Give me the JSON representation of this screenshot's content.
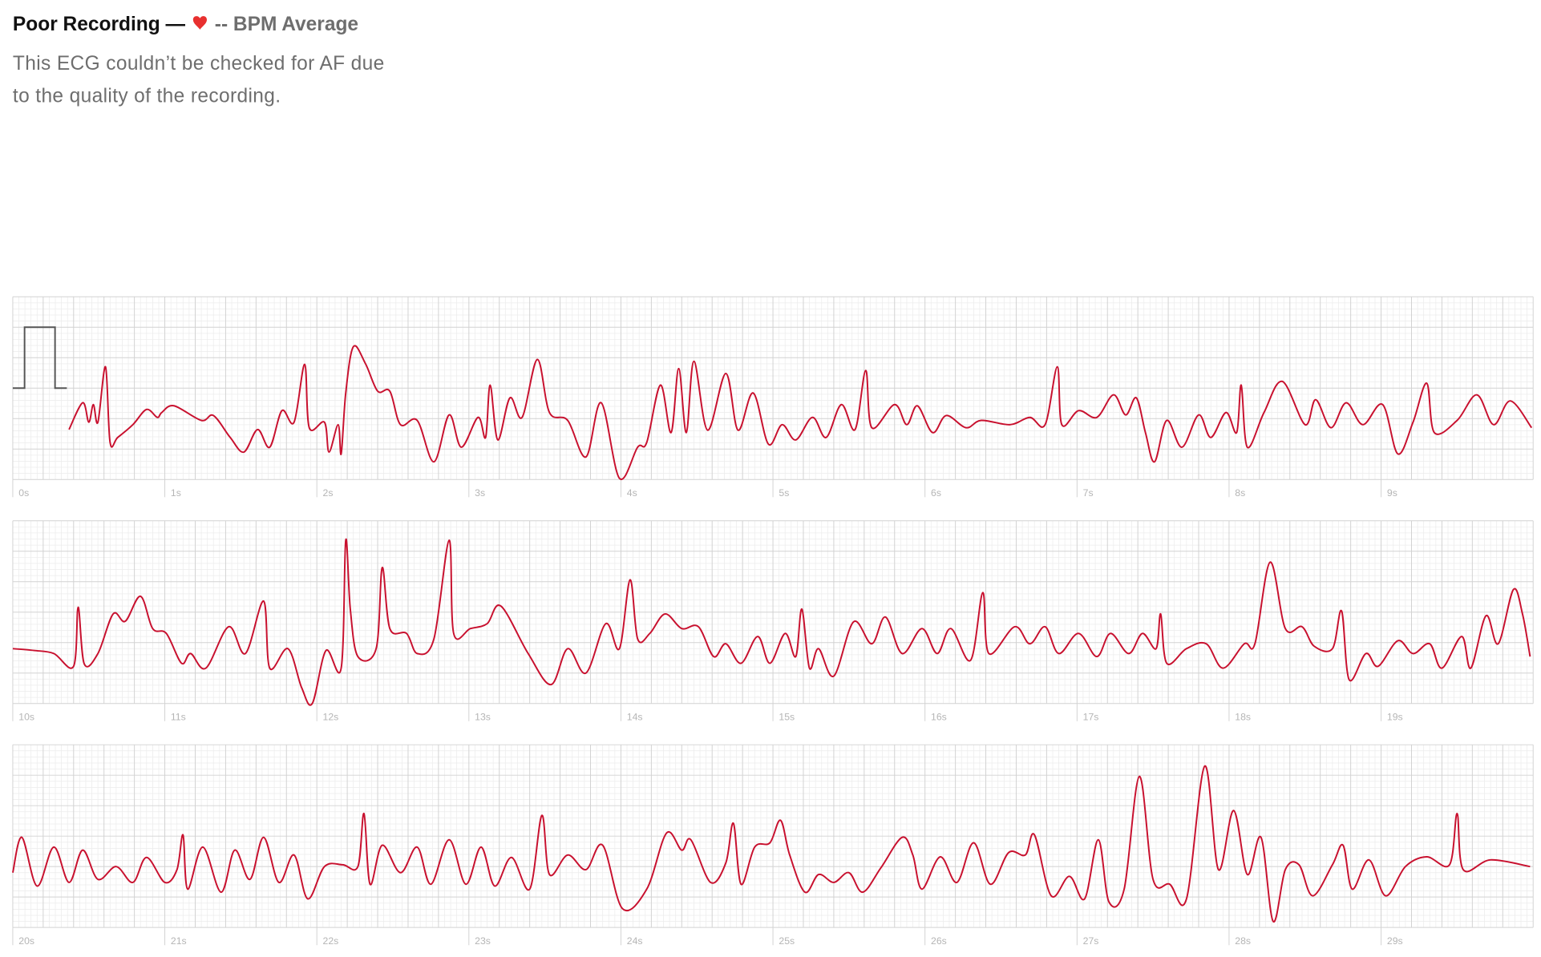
{
  "header": {
    "title": "Poor Recording —",
    "average": "-- BPM Average",
    "description": [
      "This ECG couldn’t be checked for AF due",
      "to the quality of the recording."
    ]
  },
  "chart_data": [
    {
      "type": "line",
      "xlim": [
        0,
        10
      ],
      "ylim": [
        -10,
        20
      ],
      "xticks": [
        {
          "value": 0,
          "label": "0s"
        },
        {
          "value": 1,
          "label": "1s"
        },
        {
          "value": 2,
          "label": "2s"
        },
        {
          "value": 3,
          "label": "3s"
        },
        {
          "value": 4,
          "label": "4s"
        },
        {
          "value": 5,
          "label": "5s"
        },
        {
          "value": 6,
          "label": "6s"
        },
        {
          "value": 7,
          "label": "7s"
        },
        {
          "value": 8,
          "label": "8s"
        },
        {
          "value": 9,
          "label": "9s"
        }
      ],
      "x": [
        0.37,
        0.46,
        0.5,
        0.53,
        0.56,
        0.61,
        0.64,
        0.69,
        0.79,
        0.88,
        0.95,
        0.98,
        1.06,
        1.24,
        1.32,
        1.43,
        1.52,
        1.61,
        1.69,
        1.77,
        1.85,
        1.92,
        1.95,
        2.05,
        2.08,
        2.14,
        2.16,
        2.19,
        2.24,
        2.32,
        2.4,
        2.48,
        2.55,
        2.66,
        2.77,
        2.87,
        2.95,
        3.06,
        3.11,
        3.14,
        3.19,
        3.27,
        3.35,
        3.45,
        3.53,
        3.65,
        3.77,
        3.87,
        3.99,
        4.11,
        4.17,
        4.26,
        4.33,
        4.38,
        4.43,
        4.48,
        4.57,
        4.69,
        4.77,
        4.87,
        4.97,
        5.06,
        5.15,
        5.26,
        5.35,
        5.45,
        5.54,
        5.61,
        5.65,
        5.8,
        5.88,
        5.95,
        6.05,
        6.14,
        6.27,
        6.37,
        6.56,
        6.69,
        6.79,
        6.87,
        6.9,
        7.01,
        7.13,
        7.24,
        7.32,
        7.39,
        7.45,
        7.51,
        7.59,
        7.69,
        7.8,
        7.88,
        7.98,
        8.05,
        8.08,
        8.12,
        8.23,
        8.35,
        8.5,
        8.57,
        8.67,
        8.77,
        8.88,
        9.01,
        9.11,
        9.21,
        9.3,
        9.35,
        9.5,
        9.63,
        9.74,
        9.85,
        9.99
      ],
      "series": [
        {
          "color": "#c8102e",
          "values": [
            -1.8,
            2.6,
            -0.6,
            2.3,
            -0.6,
            8.5,
            -3.9,
            -3.1,
            -1,
            1.5,
            0.2,
            1,
            2.1,
            -0.3,
            0.5,
            -3.1,
            -5.5,
            -1.8,
            -4.7,
            1.3,
            -0.6,
            8.9,
            -1.5,
            -0.6,
            -5.5,
            -1,
            -5.8,
            4.2,
            11.8,
            9,
            4.5,
            4.5,
            -1,
            -0.3,
            -7.1,
            0.6,
            -4.7,
            0.2,
            -3.1,
            5.5,
            -3.5,
            3.4,
            0.2,
            9.7,
            1,
            -0.3,
            -6.3,
            2.6,
            -9.8,
            -4.7,
            -3.9,
            5.5,
            -2.3,
            8.2,
            -2.3,
            9.4,
            -1.9,
            7.4,
            -1.9,
            4.2,
            -4.2,
            -1,
            -3.5,
            0.2,
            -3.1,
            2.3,
            -1.8,
            7.9,
            -1.5,
            2.3,
            -1,
            2.1,
            -2.3,
            0.5,
            -1.5,
            -0.3,
            -1,
            0.2,
            -1,
            8.5,
            -1,
            1.3,
            0.2,
            3.9,
            0.6,
            3.4,
            -2.3,
            -7.1,
            -0.3,
            -4.7,
            0.6,
            -3.1,
            1,
            -2.3,
            5.5,
            -4.7,
            1,
            6.1,
            -1,
            3.1,
            -1.5,
            2.6,
            -1,
            2.3,
            -5.8,
            -0.6,
            5.8,
            -2.3,
            -0.3,
            3.9,
            -1,
            2.9,
            -1.5
          ]
        }
      ]
    },
    {
      "type": "line",
      "xlim": [
        10,
        20
      ],
      "ylim": [
        -10,
        20
      ],
      "xticks": [
        {
          "value": 10,
          "label": "10s"
        },
        {
          "value": 11,
          "label": "11s"
        },
        {
          "value": 12,
          "label": "12s"
        },
        {
          "value": 13,
          "label": "13s"
        },
        {
          "value": 14,
          "label": "14s"
        },
        {
          "value": 15,
          "label": "15s"
        },
        {
          "value": 16,
          "label": "16s"
        },
        {
          "value": 17,
          "label": "17s"
        },
        {
          "value": 18,
          "label": "18s"
        },
        {
          "value": 19,
          "label": "19s"
        }
      ],
      "x": [
        10,
        10.14,
        10.27,
        10.4,
        10.43,
        10.47,
        10.56,
        10.66,
        10.74,
        10.84,
        10.92,
        11.01,
        11.11,
        11.17,
        11.27,
        11.42,
        11.53,
        11.65,
        11.69,
        11.81,
        11.9,
        11.97,
        12.06,
        12.16,
        12.19,
        12.22,
        12.27,
        12.39,
        12.43,
        12.48,
        12.59,
        12.66,
        12.77,
        12.87,
        12.9,
        13.01,
        13.12,
        13.21,
        13.39,
        13.54,
        13.65,
        13.77,
        13.9,
        13.99,
        14.06,
        14.11,
        14.19,
        14.29,
        14.4,
        14.51,
        14.61,
        14.69,
        14.79,
        14.9,
        14.98,
        15.08,
        15.15,
        15.19,
        15.24,
        15.3,
        15.4,
        15.53,
        15.65,
        15.74,
        15.85,
        15.98,
        16.08,
        16.17,
        16.3,
        16.38,
        16.42,
        16.59,
        16.69,
        16.79,
        16.88,
        17.01,
        17.13,
        17.22,
        17.34,
        17.43,
        17.52,
        17.55,
        17.59,
        17.72,
        17.85,
        17.96,
        18.1,
        18.17,
        18.27,
        18.37,
        18.48,
        18.56,
        18.68,
        18.74,
        18.79,
        18.9,
        18.98,
        19.11,
        19.21,
        19.32,
        19.4,
        19.53,
        19.59,
        19.69,
        19.77,
        19.87,
        19.93,
        19.98
      ],
      "series": [
        {
          "color": "#c8102e",
          "values": [
            -1,
            -1.3,
            -1.8,
            -3.9,
            5.8,
            -3.5,
            -1.8,
            4.7,
            3.5,
            7.6,
            2.3,
            1.5,
            -3.4,
            -1.8,
            -4.2,
            2.6,
            -1.8,
            6.8,
            -4.2,
            -1,
            -7.4,
            -10,
            -1.3,
            -4.2,
            16.8,
            5.5,
            -2.3,
            -1,
            12.3,
            2.3,
            1.5,
            -1.8,
            0.6,
            16.8,
            1.5,
            2.3,
            3.1,
            6,
            -1.8,
            -6.9,
            -1,
            -5,
            3.1,
            -1,
            10.3,
            0.6,
            1.5,
            4.7,
            2.3,
            2.6,
            -2.3,
            -0.2,
            -3.4,
            1,
            -3.4,
            1.5,
            -2.3,
            5.5,
            -4.2,
            -1,
            -5.5,
            3.4,
            -0.2,
            4.2,
            -1.8,
            2.3,
            -1.8,
            2.3,
            -2.9,
            8.2,
            -1.8,
            2.6,
            -0.2,
            2.6,
            -1.8,
            1.5,
            -2.3,
            1.5,
            -1.8,
            1.5,
            -1,
            4.7,
            -3.4,
            -1,
            -0.2,
            -4.2,
            -0.2,
            -0.2,
            13.2,
            2.3,
            2.6,
            -0.6,
            -1,
            5.2,
            -6.1,
            -1.8,
            -3.9,
            0.3,
            -1.8,
            -0.2,
            -4.2,
            1,
            -4.2,
            4.4,
            -0.2,
            8.7,
            4.7,
            -2.3
          ]
        }
      ]
    },
    {
      "type": "line",
      "xlim": [
        20,
        30
      ],
      "ylim": [
        -10,
        20
      ],
      "xticks": [
        {
          "value": 20,
          "label": "20s"
        },
        {
          "value": 21,
          "label": "21s"
        },
        {
          "value": 22,
          "label": "22s"
        },
        {
          "value": 23,
          "label": "23s"
        },
        {
          "value": 24,
          "label": "24s"
        },
        {
          "value": 25,
          "label": "25s"
        },
        {
          "value": 26,
          "label": "26s"
        },
        {
          "value": 27,
          "label": "27s"
        },
        {
          "value": 28,
          "label": "28s"
        },
        {
          "value": 29,
          "label": "29s"
        }
      ],
      "x": [
        20,
        20.06,
        20.16,
        20.27,
        20.37,
        20.46,
        20.56,
        20.68,
        20.79,
        20.88,
        21,
        21.08,
        21.12,
        21.15,
        21.25,
        21.37,
        21.46,
        21.56,
        21.65,
        21.75,
        21.85,
        21.94,
        22.05,
        22.17,
        22.27,
        22.31,
        22.35,
        22.43,
        22.55,
        22.66,
        22.75,
        22.87,
        22.98,
        23.08,
        23.17,
        23.28,
        23.4,
        23.48,
        23.53,
        23.65,
        23.77,
        23.88,
        24.01,
        24.17,
        24.3,
        24.4,
        24.46,
        24.59,
        24.69,
        24.74,
        24.79,
        24.88,
        24.98,
        25.05,
        25.11,
        25.21,
        25.3,
        25.4,
        25.5,
        25.59,
        25.71,
        25.85,
        25.92,
        25.98,
        26.1,
        26.21,
        26.32,
        26.43,
        26.55,
        26.66,
        26.72,
        26.83,
        26.95,
        27.05,
        27.14,
        27.21,
        27.31,
        27.41,
        27.5,
        27.61,
        27.72,
        27.84,
        27.93,
        28.03,
        28.12,
        28.21,
        28.29,
        28.37,
        28.46,
        28.55,
        28.68,
        28.75,
        28.81,
        28.92,
        29.03,
        29.16,
        29.3,
        29.45,
        29.5,
        29.54,
        29.72,
        29.98
      ],
      "series": [
        {
          "color": "#c8102e",
          "values": [
            -1,
            4.8,
            -3.2,
            3.2,
            -2.6,
            2.7,
            -2.1,
            0,
            -2.6,
            1.5,
            -2.6,
            -0.5,
            5.2,
            -3.7,
            3.2,
            -4.2,
            2.7,
            -2.1,
            4.8,
            -2.6,
            1.9,
            -5.3,
            0,
            0.3,
            0,
            8.7,
            -2.9,
            3.5,
            -1,
            3.2,
            -2.9,
            4.4,
            -2.9,
            3.2,
            -3.2,
            1.5,
            -3.7,
            8.4,
            -1.3,
            1.9,
            -0.5,
            3.5,
            -6.9,
            -3.7,
            5.5,
            2.7,
            4.4,
            -2.6,
            0.6,
            7.1,
            -2.9,
            3.2,
            3.9,
            7.6,
            1.9,
            -4.2,
            -1.3,
            -2.6,
            -1,
            -4.2,
            -0.2,
            4.8,
            1.9,
            -3.7,
            1.6,
            -2.6,
            3.9,
            -2.9,
            2.3,
            1.9,
            5.2,
            -4.8,
            -1.6,
            -5.3,
            4.4,
            -5.8,
            -3.7,
            14.8,
            -2.1,
            -2.9,
            -5.3,
            16.5,
            -0.5,
            9.2,
            -1.3,
            4.8,
            -9,
            -0.5,
            0.3,
            -4.8,
            0.3,
            3.5,
            -3.7,
            1.1,
            -4.8,
            0,
            1.6,
            0.3,
            8.7,
            -0.5,
            1.1,
            0
          ]
        }
      ]
    }
  ]
}
